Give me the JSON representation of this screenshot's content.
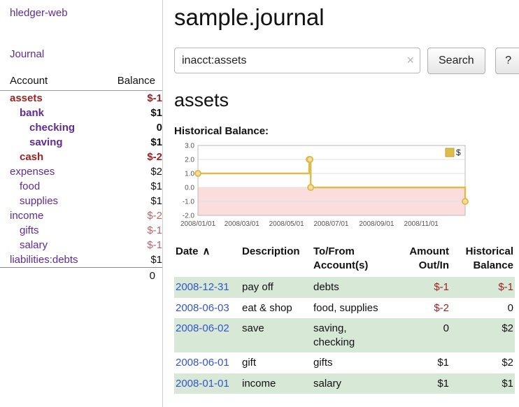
{
  "app": {
    "title": "hledger-web"
  },
  "colors": {
    "link_purple": "#5e2b97",
    "selected_account_red": "#9e2222",
    "negative_soft_red": "#bb6666",
    "date_link_blue": "#3355cc",
    "row_shade_green": "#d7e8d7",
    "chart_line_gold": "#debb4b",
    "chart_negative_pink": "#fbdddd"
  },
  "sidebar": {
    "journal_link": "Journal",
    "accounts_header": {
      "account": "Account",
      "balance": "Balance"
    },
    "accounts": [
      {
        "name": "assets",
        "depth": 0,
        "balance": "$-1",
        "name_class": "sel",
        "bal_class": "neg-bold"
      },
      {
        "name": "bank",
        "depth": 1,
        "balance": "$1",
        "name_class": "bold",
        "bal_class": "bold"
      },
      {
        "name": "checking",
        "depth": 2,
        "balance": "0",
        "name_class": "bold",
        "bal_class": "bold"
      },
      {
        "name": "saving",
        "depth": 2,
        "balance": "$1",
        "name_class": "bold",
        "bal_class": "bold"
      },
      {
        "name": "cash",
        "depth": 1,
        "balance": "$-2",
        "name_class": "sel",
        "bal_class": "neg-bold"
      },
      {
        "name": "expenses",
        "depth": 0,
        "balance": "$2",
        "name_class": "",
        "bal_class": ""
      },
      {
        "name": "food",
        "depth": 1,
        "balance": "$1",
        "name_class": "",
        "bal_class": ""
      },
      {
        "name": "supplies",
        "depth": 1,
        "balance": "$1",
        "name_class": "",
        "bal_class": ""
      },
      {
        "name": "income",
        "depth": 0,
        "balance": "$-2",
        "name_class": "",
        "bal_class": "neg"
      },
      {
        "name": "gifts",
        "depth": 1,
        "balance": "$-1",
        "name_class": "",
        "bal_class": "neg"
      },
      {
        "name": "salary",
        "depth": 1,
        "balance": "$-1",
        "name_class": "",
        "bal_class": "neg"
      },
      {
        "name": "liabilities:debts",
        "depth": 0,
        "balance": "$1",
        "name_class": "",
        "bal_class": ""
      }
    ],
    "total": "0"
  },
  "main": {
    "title": "sample.journal",
    "search": {
      "value": "inacct:assets",
      "clear_icon": "×",
      "search_button": "Search",
      "help_button": "?"
    },
    "account_heading": "assets",
    "chart_title": "Historical Balance:"
  },
  "chart_data": {
    "type": "line",
    "step": true,
    "title": "Historical Balance:",
    "series": [
      {
        "name": "$",
        "points": [
          [
            "2008-01-01",
            1
          ],
          [
            "2008-06-01",
            2
          ],
          [
            "2008-06-02",
            2
          ],
          [
            "2008-06-03",
            0
          ],
          [
            "2008-12-31",
            -1
          ]
        ]
      }
    ],
    "ylim": [
      -2.0,
      3.0
    ],
    "yticks": [
      3.0,
      2.0,
      1.0,
      0.0,
      -1.0,
      -2.0
    ],
    "xticks": [
      "2008/01/01",
      "2008/03/01",
      "2008/05/01",
      "2008/07/01",
      "2008/09/01",
      "2008/11/01"
    ],
    "xrange": [
      "2008-01-01",
      "2008-12-31"
    ],
    "legend_position": "top-right",
    "grid": true,
    "colors": {
      "line": "#debb4b",
      "marker_fill": "#f2dfa7",
      "legend_border": "#c9a033",
      "negative_region": "#fbdddd",
      "grid_line": "#e2e2e2",
      "border": "#bbbbbb",
      "tick_text": "#555555"
    }
  },
  "register": {
    "headers": {
      "date": "Date",
      "sort_icon": "∧",
      "description": "Description",
      "accounts": "To/From\nAccount(s)",
      "amount": "Amount\nOut/In",
      "balance": "Historical\nBalance"
    },
    "rows": [
      {
        "date": "2008-12-31",
        "description": "pay off",
        "accounts": "debts",
        "amount": "$-1",
        "amount_neg": true,
        "balance": "$-1",
        "balance_neg": true,
        "shaded": true
      },
      {
        "date": "2008-06-03",
        "description": "eat & shop",
        "accounts": "food, supplies",
        "amount": "$-2",
        "amount_neg": true,
        "balance": "0",
        "balance_neg": false,
        "shaded": false
      },
      {
        "date": "2008-06-02",
        "description": "save",
        "accounts": "saving, checking",
        "amount": "0",
        "amount_neg": false,
        "balance": "$2",
        "balance_neg": false,
        "shaded": true
      },
      {
        "date": "2008-06-01",
        "description": "gift",
        "accounts": "gifts",
        "amount": "$1",
        "amount_neg": false,
        "balance": "$2",
        "balance_neg": false,
        "shaded": false
      },
      {
        "date": "2008-01-01",
        "description": "income",
        "accounts": "salary",
        "amount": "$1",
        "amount_neg": false,
        "balance": "$1",
        "balance_neg": false,
        "shaded": true
      }
    ]
  }
}
